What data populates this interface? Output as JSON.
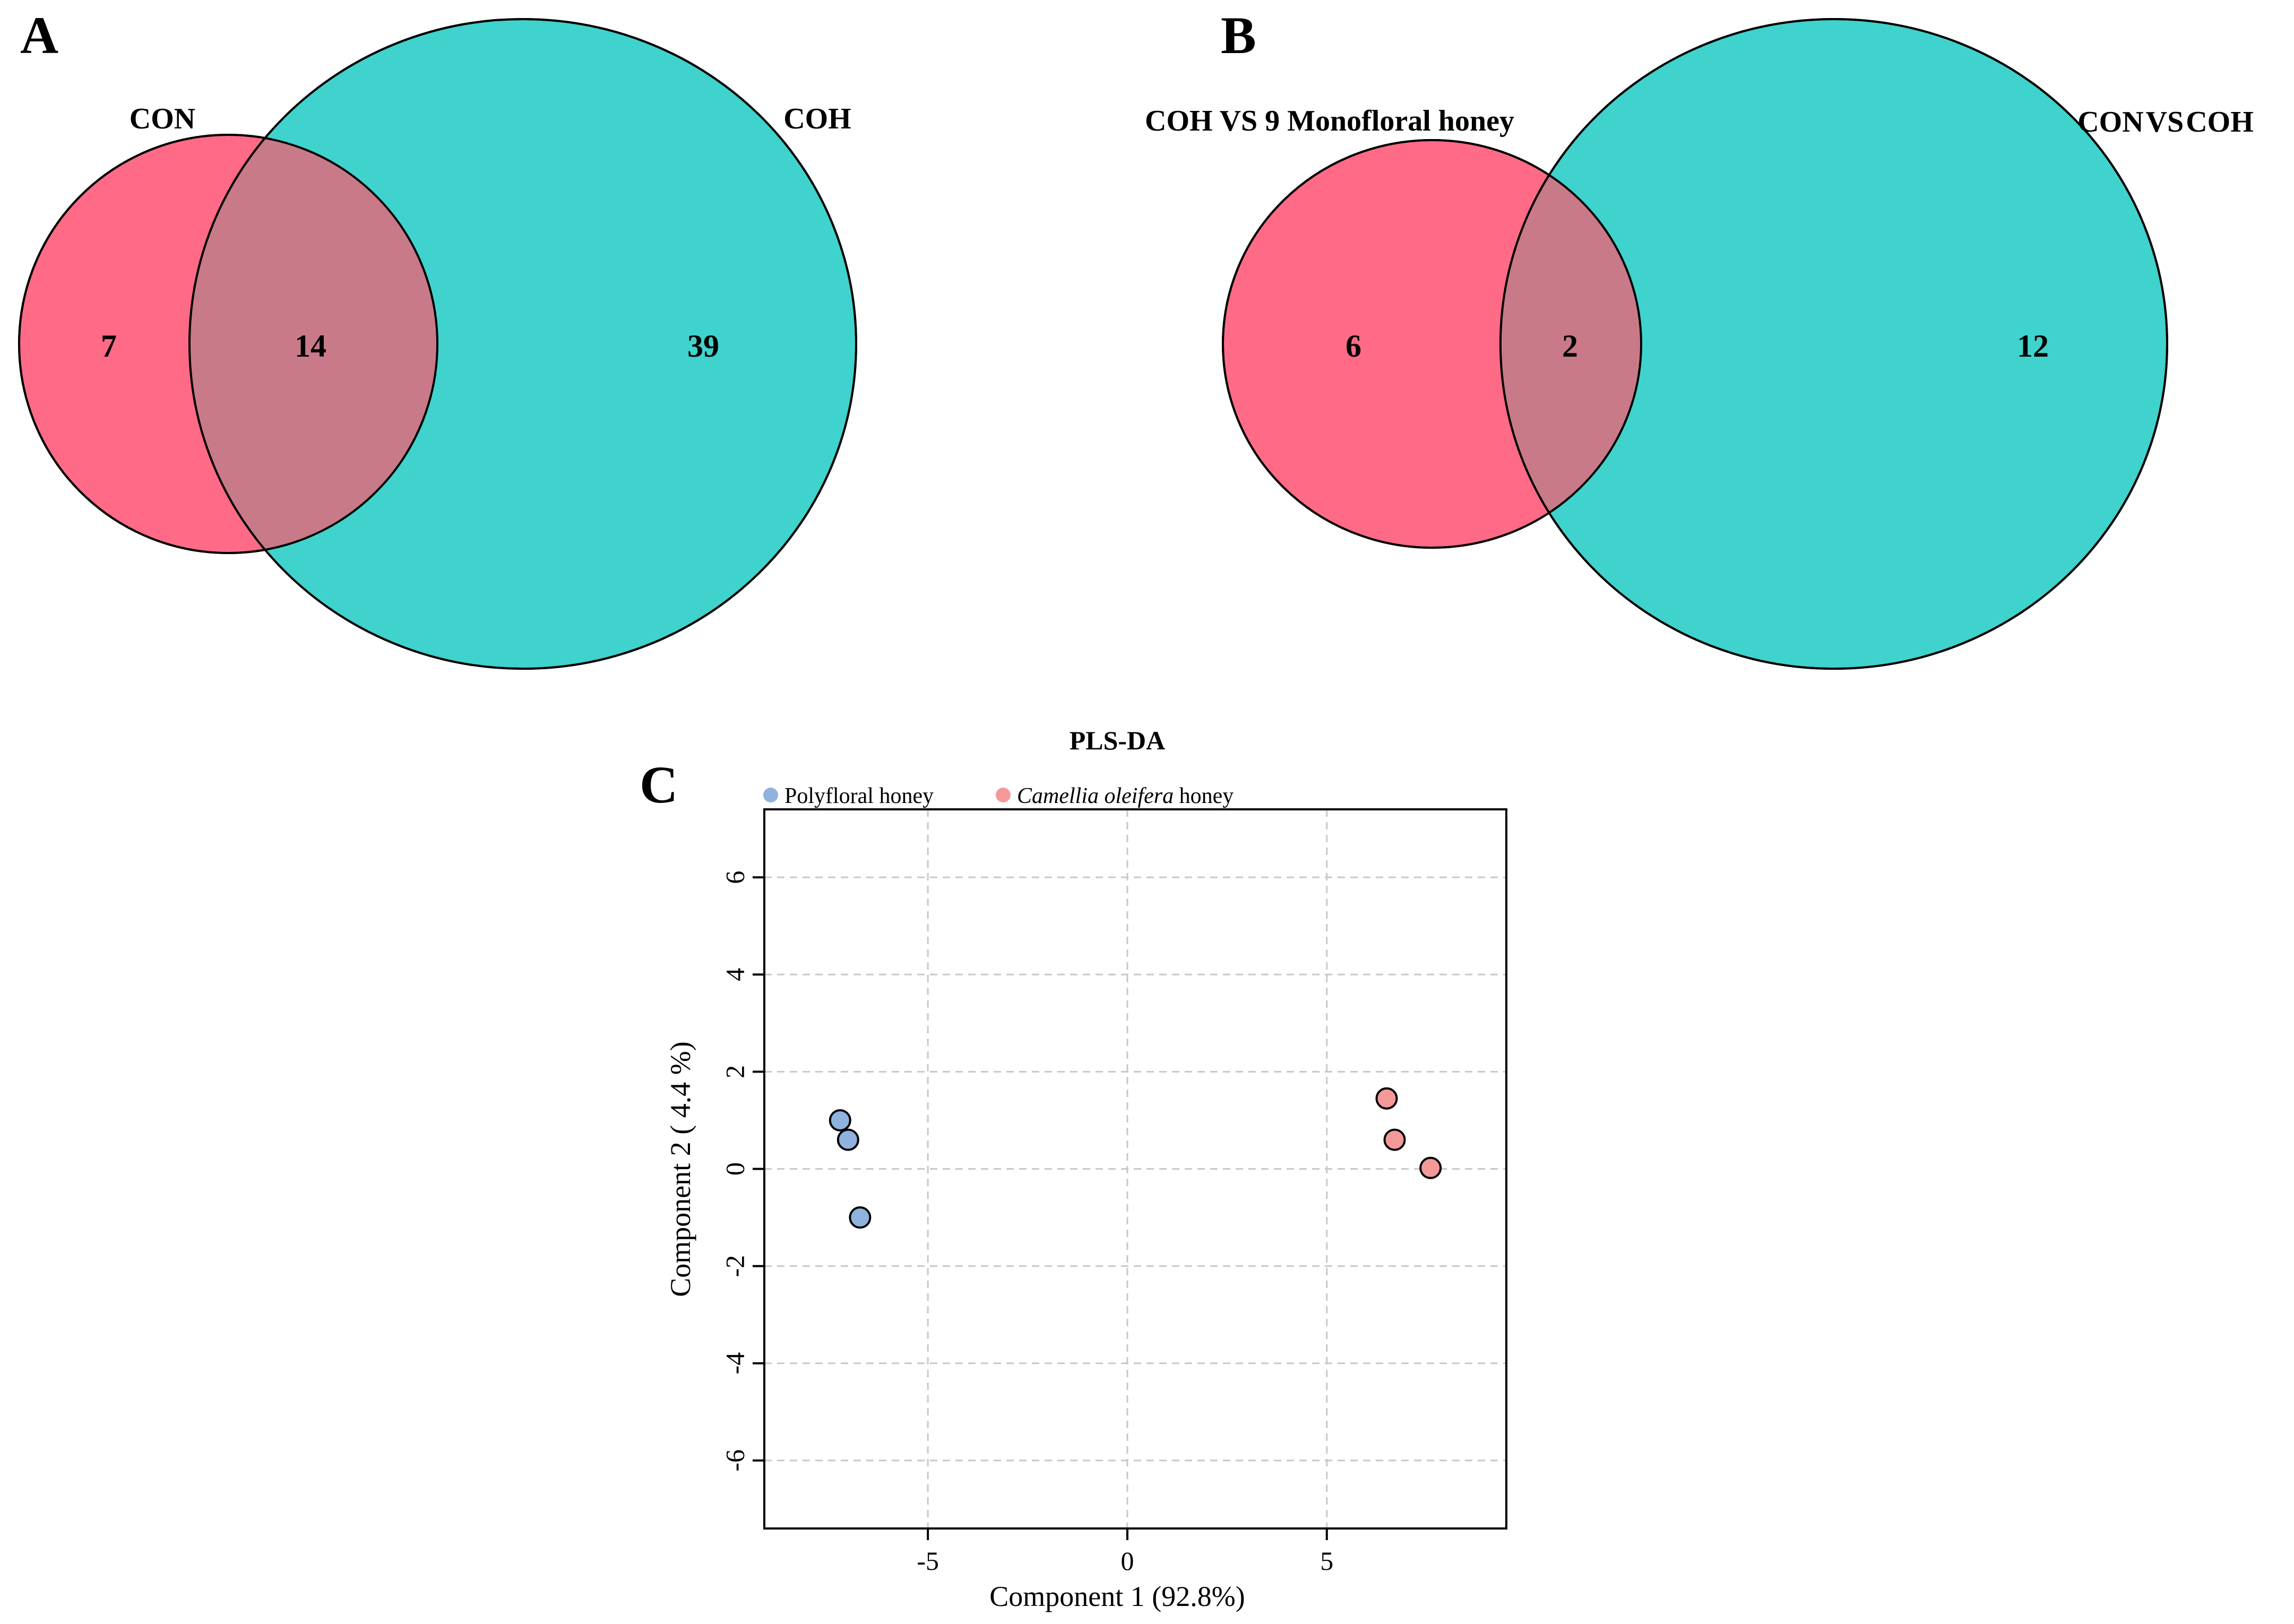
{
  "colors": {
    "pink": "#ff6b86",
    "teal": "#40d2cc",
    "overlap": "#c87a89",
    "blue_point": "#8fb2df",
    "red_point": "#f39a99"
  },
  "panel_a": {
    "letter": "A",
    "left_label": "CON",
    "right_label": "COH"
  },
  "panel_b": {
    "letter": "B",
    "left_label": "COH VS 9 Monofloral honey",
    "right_label_pre": "CON",
    "right_label_vs": "VS",
    "right_label_post": "COH"
  },
  "panel_c": {
    "letter": "C",
    "legend_italic": "Camellia oleifera",
    "legend_suffix": " honey"
  },
  "chart_data": [
    {
      "type": "venn",
      "panel": "A",
      "sets": [
        "CON",
        "COH"
      ],
      "counts": {
        "only_left": 7,
        "both": 14,
        "only_right": 39
      }
    },
    {
      "type": "venn",
      "panel": "B",
      "sets": [
        "COH VS 9 Monofloral honey",
        "CON VS COH"
      ],
      "counts": {
        "only_left": 6,
        "both": 2,
        "only_right": 12
      }
    },
    {
      "type": "scatter",
      "panel": "C",
      "title": "PLS-DA",
      "xlabel": "Component 1 (92.8%)",
      "ylabel": "Component 2 ( 4.4 %)",
      "xlim": [
        -9.1,
        9.5
      ],
      "ylim": [
        -7.4,
        7.4
      ],
      "xticks": [
        -5,
        0,
        5
      ],
      "yticks": [
        -6,
        -4,
        -2,
        0,
        2,
        4,
        6
      ],
      "grid": true,
      "legend_position": "top",
      "series": [
        {
          "name": "Polyfloral honey",
          "points": [
            [
              -7.2,
              1.0
            ],
            [
              -7.0,
              0.6
            ],
            [
              -6.7,
              -1.0
            ]
          ]
        },
        {
          "name": "Camellia oleifera honey",
          "points": [
            [
              6.5,
              1.45
            ],
            [
              6.7,
              0.6
            ],
            [
              7.6,
              0.02
            ]
          ]
        }
      ]
    }
  ]
}
